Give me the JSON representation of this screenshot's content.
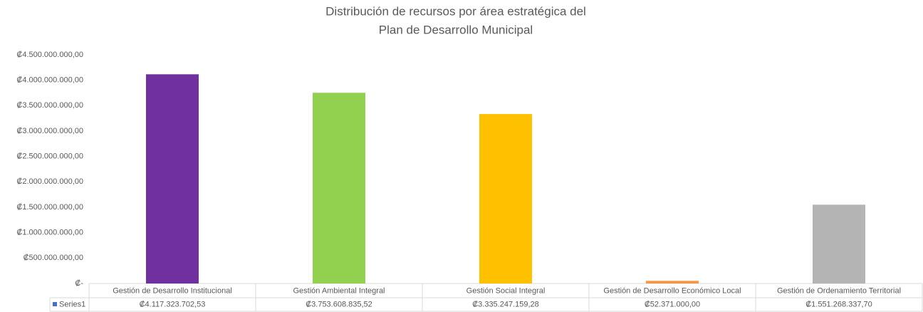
{
  "chart_data": {
    "type": "bar",
    "title": [
      "Distribución de recursos por área estratégica del",
      "Plan de Desarrollo Municipal"
    ],
    "categories": [
      "Gestión de Desarrollo Institucional",
      "Gestión Ambiental Integral",
      "Gestión Social Integral",
      "Gestión de Desarrollo Económico Local",
      "Gestión de Ordenamiento Territorial"
    ],
    "series": [
      {
        "name": "Series1",
        "color": "#4472c4",
        "point_colors": [
          "#7030a0",
          "#92d050",
          "#ffc000",
          "#f79646",
          "#b4b4b4"
        ],
        "values": [
          4117323702.53,
          3753608835.52,
          3335247159.28,
          52371000,
          1551268337.7
        ],
        "value_labels": [
          "₡4.117.323.702,53",
          "₡3.753.608.835,52",
          "₡3.335.247.159,28",
          "₡52.371.000,00",
          "₡1.551.268.337,70"
        ]
      }
    ],
    "ylim": [
      0,
      4500000000
    ],
    "yticks": [
      {
        "value": 0,
        "label": "₡-"
      },
      {
        "value": 500000000,
        "label": "₡500.000.000,00"
      },
      {
        "value": 1000000000,
        "label": "₡1.000.000.000,00"
      },
      {
        "value": 1500000000,
        "label": "₡1.500.000.000,00"
      },
      {
        "value": 2000000000,
        "label": "₡2.000.000.000,00"
      },
      {
        "value": 2500000000,
        "label": "₡2.500.000.000,00"
      },
      {
        "value": 3000000000,
        "label": "₡3.000.000.000,00"
      },
      {
        "value": 3500000000,
        "label": "₡3.500.000.000,00"
      },
      {
        "value": 4000000000,
        "label": "₡4.000.000.000,00"
      },
      {
        "value": 4500000000,
        "label": "₡4.500.000.000,00"
      }
    ],
    "grid": false,
    "data_table": true
  }
}
